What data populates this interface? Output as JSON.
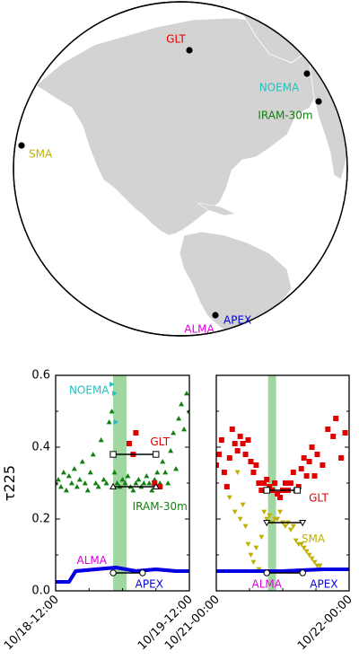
{
  "map": {
    "stations": [
      {
        "name": "GLT",
        "color": "#e00000"
      },
      {
        "name": "NOEMA",
        "color": "#20c0c0"
      },
      {
        "name": "IRAM-30m",
        "color": "#108010"
      },
      {
        "name": "SMA",
        "color": "#c0b000"
      },
      {
        "name": "ALMA",
        "color": "#e000e0"
      },
      {
        "name": "APEX",
        "color": "#0000e0"
      }
    ],
    "colors": {
      "ocean": "#ffffff",
      "land": "#d3d3d3",
      "border": "#ffffff"
    }
  },
  "chart_data": [
    {
      "type": "scatter",
      "ylabel": "τ225",
      "ylim": [
        0,
        0.6
      ],
      "yticks": [
        "0.0",
        "0.2",
        "0.4",
        "0.6"
      ],
      "xticks": [
        "10/18-12:00",
        "10/19-12:00"
      ],
      "highlight_band_color": "#8fcf8f",
      "series": [
        {
          "name": "NOEMA",
          "color": "#20c0c0",
          "marker": "triangle-right",
          "values": [
            [
              0.42,
              0.575
            ],
            [
              0.44,
              0.55
            ],
            [
              0.45,
              0.47
            ]
          ]
        },
        {
          "name": "IRAM-30m",
          "color": "#108010",
          "marker": "triangle-up",
          "values": [
            [
              0.0,
              0.3
            ],
            [
              0.02,
              0.31
            ],
            [
              0.04,
              0.29
            ],
            [
              0.06,
              0.33
            ],
            [
              0.08,
              0.28
            ],
            [
              0.1,
              0.32
            ],
            [
              0.12,
              0.3
            ],
            [
              0.14,
              0.34
            ],
            [
              0.16,
              0.29
            ],
            [
              0.18,
              0.31
            ],
            [
              0.2,
              0.36
            ],
            [
              0.22,
              0.3
            ],
            [
              0.24,
              0.28
            ],
            [
              0.26,
              0.33
            ],
            [
              0.28,
              0.38
            ],
            [
              0.3,
              0.3
            ],
            [
              0.32,
              0.29
            ],
            [
              0.34,
              0.42
            ],
            [
              0.36,
              0.31
            ],
            [
              0.38,
              0.3
            ],
            [
              0.4,
              0.47
            ],
            [
              0.42,
              0.5
            ],
            [
              0.44,
              0.33
            ],
            [
              0.46,
              0.3
            ],
            [
              0.48,
              0.29
            ],
            [
              0.5,
              0.31
            ],
            [
              0.52,
              0.3
            ],
            [
              0.54,
              0.32
            ],
            [
              0.56,
              0.29
            ],
            [
              0.58,
              0.28
            ],
            [
              0.6,
              0.3
            ],
            [
              0.62,
              0.31
            ],
            [
              0.64,
              0.29
            ],
            [
              0.66,
              0.3
            ],
            [
              0.68,
              0.32
            ],
            [
              0.7,
              0.3
            ],
            [
              0.72,
              0.28
            ],
            [
              0.74,
              0.31
            ],
            [
              0.76,
              0.33
            ],
            [
              0.78,
              0.3
            ],
            [
              0.8,
              0.36
            ],
            [
              0.82,
              0.33
            ],
            [
              0.84,
              0.3
            ],
            [
              0.86,
              0.39
            ],
            [
              0.88,
              0.44
            ],
            [
              0.9,
              0.34
            ],
            [
              0.92,
              0.48
            ],
            [
              0.94,
              0.52
            ],
            [
              0.96,
              0.45
            ],
            [
              0.98,
              0.55
            ],
            [
              1.0,
              0.5
            ]
          ]
        },
        {
          "name": "GLT",
          "color": "#e00000",
          "marker": "square",
          "values": [
            [
              0.55,
              0.41
            ],
            [
              0.58,
              0.38
            ],
            [
              0.6,
              0.44
            ],
            [
              0.74,
              0.3
            ],
            [
              0.78,
              0.29
            ]
          ]
        },
        {
          "name": "ALMA",
          "color": "#e000e0",
          "marker": "line",
          "values": [
            [
              0.0,
              0.025
            ],
            [
              0.1,
              0.025
            ],
            [
              0.15,
              0.055
            ],
            [
              0.3,
              0.06
            ],
            [
              0.45,
              0.065
            ],
            [
              0.6,
              0.055
            ],
            [
              0.75,
              0.06
            ],
            [
              0.9,
              0.055
            ],
            [
              1.0,
              0.055
            ]
          ]
        },
        {
          "name": "APEX",
          "color": "#0000e0",
          "marker": "line",
          "values": [
            [
              0.0,
              0.025
            ],
            [
              0.1,
              0.025
            ],
            [
              0.15,
              0.055
            ],
            [
              0.3,
              0.06
            ],
            [
              0.45,
              0.065
            ],
            [
              0.6,
              0.055
            ],
            [
              0.75,
              0.06
            ],
            [
              0.9,
              0.055
            ],
            [
              1.0,
              0.055
            ]
          ]
        }
      ],
      "bars": [
        {
          "series": "GLT",
          "y": 0.38,
          "marker": "square"
        },
        {
          "series": "IRAM-30m",
          "y": 0.29,
          "marker": "triangle-up"
        },
        {
          "series": "ALMA",
          "y": 0.05,
          "marker": "circle"
        }
      ]
    },
    {
      "type": "scatter",
      "ylim": [
        0,
        0.6
      ],
      "xticks": [
        "10/21-00:00",
        "10/22-00:00"
      ],
      "highlight_band_color": "#8fcf8f",
      "series": [
        {
          "name": "GLT",
          "color": "#e00000",
          "marker": "square",
          "values": [
            [
              0.0,
              0.35
            ],
            [
              0.02,
              0.38
            ],
            [
              0.04,
              0.42
            ],
            [
              0.06,
              0.33
            ],
            [
              0.08,
              0.29
            ],
            [
              0.1,
              0.37
            ],
            [
              0.12,
              0.45
            ],
            [
              0.14,
              0.41
            ],
            [
              0.16,
              0.39
            ],
            [
              0.18,
              0.43
            ],
            [
              0.2,
              0.41
            ],
            [
              0.22,
              0.38
            ],
            [
              0.24,
              0.42
            ],
            [
              0.26,
              0.36
            ],
            [
              0.28,
              0.33
            ],
            [
              0.3,
              0.35
            ],
            [
              0.32,
              0.3
            ],
            [
              0.34,
              0.28
            ],
            [
              0.36,
              0.3
            ],
            [
              0.38,
              0.31
            ],
            [
              0.4,
              0.29
            ],
            [
              0.42,
              0.28
            ],
            [
              0.44,
              0.3
            ],
            [
              0.46,
              0.27
            ],
            [
              0.48,
              0.26
            ],
            [
              0.5,
              0.28
            ],
            [
              0.52,
              0.3
            ],
            [
              0.54,
              0.28
            ],
            [
              0.56,
              0.3
            ],
            [
              0.58,
              0.33
            ],
            [
              0.6,
              0.28
            ],
            [
              0.62,
              0.29
            ],
            [
              0.64,
              0.34
            ],
            [
              0.66,
              0.37
            ],
            [
              0.68,
              0.32
            ],
            [
              0.7,
              0.36
            ],
            [
              0.72,
              0.4
            ],
            [
              0.74,
              0.32
            ],
            [
              0.76,
              0.38
            ],
            [
              0.8,
              0.35
            ],
            [
              0.84,
              0.45
            ],
            [
              0.88,
              0.43
            ],
            [
              0.9,
              0.48
            ],
            [
              0.94,
              0.37
            ],
            [
              0.97,
              0.44
            ]
          ]
        },
        {
          "name": "SMA",
          "color": "#c0b000",
          "marker": "triangle-down",
          "values": [
            [
              0.1,
              0.26
            ],
            [
              0.14,
              0.22
            ],
            [
              0.16,
              0.33
            ],
            [
              0.18,
              0.2
            ],
            [
              0.2,
              0.24
            ],
            [
              0.22,
              0.18
            ],
            [
              0.24,
              0.13
            ],
            [
              0.26,
              0.1
            ],
            [
              0.28,
              0.08
            ],
            [
              0.3,
              0.12
            ],
            [
              0.32,
              0.06
            ],
            [
              0.34,
              0.15
            ],
            [
              0.36,
              0.22
            ],
            [
              0.38,
              0.2
            ],
            [
              0.4,
              0.21
            ],
            [
              0.42,
              0.19
            ],
            [
              0.44,
              0.2
            ],
            [
              0.46,
              0.2
            ],
            [
              0.48,
              0.22
            ],
            [
              0.5,
              0.19
            ],
            [
              0.52,
              0.18
            ],
            [
              0.54,
              0.19
            ],
            [
              0.56,
              0.17
            ],
            [
              0.58,
              0.18
            ],
            [
              0.6,
              0.14
            ],
            [
              0.62,
              0.13
            ],
            [
              0.64,
              0.13
            ],
            [
              0.66,
              0.12
            ],
            [
              0.68,
              0.11
            ],
            [
              0.7,
              0.1
            ],
            [
              0.72,
              0.09
            ],
            [
              0.74,
              0.08
            ],
            [
              0.76,
              0.07
            ],
            [
              0.78,
              0.07
            ]
          ]
        },
        {
          "name": "ALMA",
          "color": "#e000e0",
          "marker": "line",
          "values": [
            [
              0.0,
              0.055
            ],
            [
              0.5,
              0.055
            ],
            [
              0.8,
              0.06
            ],
            [
              1.0,
              0.06
            ]
          ]
        },
        {
          "name": "APEX",
          "color": "#0000e0",
          "marker": "line",
          "values": [
            [
              0.0,
              0.055
            ],
            [
              0.5,
              0.055
            ],
            [
              0.8,
              0.06
            ],
            [
              1.0,
              0.06
            ]
          ]
        }
      ],
      "bars": [
        {
          "series": "GLT",
          "y": 0.28,
          "marker": "square"
        },
        {
          "series": "SMA",
          "y": 0.19,
          "marker": "triangle-down"
        },
        {
          "series": "ALMA",
          "y": 0.05,
          "marker": "circle"
        }
      ]
    }
  ]
}
